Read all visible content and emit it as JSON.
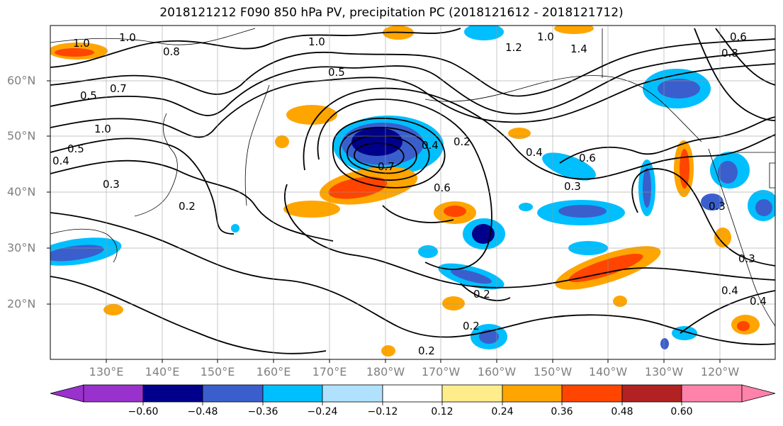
{
  "title": "2018121212 F090 850 hPa PV, precipitation PC (2018121612 - 2018121712)",
  "lat_labels": [
    "60°N",
    "50°N",
    "40°N",
    "30°N",
    "20°N"
  ],
  "lon_labels": [
    "130°E",
    "140°E",
    "150°E",
    "160°E",
    "170°E",
    "180°W",
    "170°W",
    "160°W",
    "150°W",
    "140°W",
    "130°W",
    "120°W"
  ],
  "colorbar": {
    "ticks": [
      "−0.60",
      "−0.48",
      "−0.36",
      "−0.24",
      "−0.12",
      "0.12",
      "0.24",
      "0.36",
      "0.48",
      "0.60"
    ],
    "colors": [
      "#9932cc",
      "#00008b",
      "#3a5fcd",
      "#00bfff",
      "#b0e2ff",
      "#ffffff",
      "#ffec8b",
      "#ffa500",
      "#ff4500",
      "#b22222",
      "#ff82ab"
    ]
  },
  "contour_labels": [
    "1.0",
    "1.0",
    "0.8",
    "1.0",
    "1.0",
    "1.4",
    "0.6",
    "0.8",
    "1.2",
    "0.5",
    "0.7",
    "0.5",
    "1.0",
    "0.5",
    "0.4",
    "0.3",
    "0.2",
    "0.4",
    "0.2",
    "0.7",
    "0.6",
    "0.4",
    "0.3",
    "0.6",
    "0.3",
    "0.3",
    "0.4",
    "0.4",
    "0.2",
    "0.2",
    "0.2"
  ]
}
